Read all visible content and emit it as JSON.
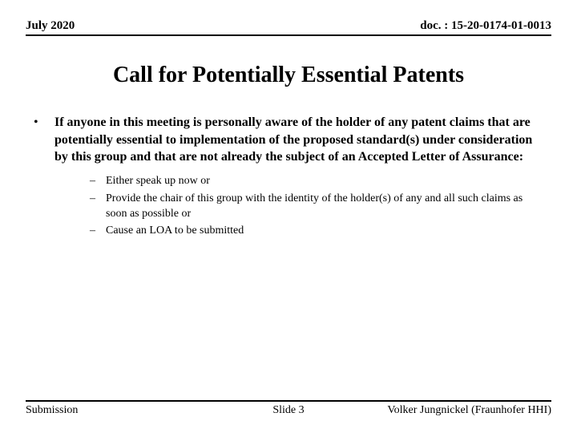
{
  "header": {
    "date": "July 2020",
    "doc": "doc. : 15-20-0174-01-0013"
  },
  "title": "Call for Potentially Essential Patents",
  "bullet": {
    "marker": "•",
    "text": "If anyone in this meeting is personally aware of the holder of any patent claims that are potentially essential to implementation of the proposed standard(s) under consideration by this group and that are not already the subject of an Accepted Letter of Assurance:"
  },
  "subitems": [
    {
      "marker": "–",
      "text": "Either speak up now or"
    },
    {
      "marker": "–",
      "text": "Provide the chair of this group with the identity of the holder(s) of any and all such claims as soon as possible or"
    },
    {
      "marker": "–",
      "text": "Cause an LOA to be submitted"
    }
  ],
  "footer": {
    "left": "Submission",
    "center": "Slide 3",
    "right": "Volker Jungnickel (Fraunhofer HHI)"
  },
  "colors": {
    "background": "#ffffff",
    "text": "#000000",
    "rule": "#000000"
  },
  "fonts": {
    "family": "Times New Roman",
    "title_size": 28,
    "header_size": 15,
    "body_size": 16,
    "sub_size": 14,
    "footer_size": 14
  }
}
